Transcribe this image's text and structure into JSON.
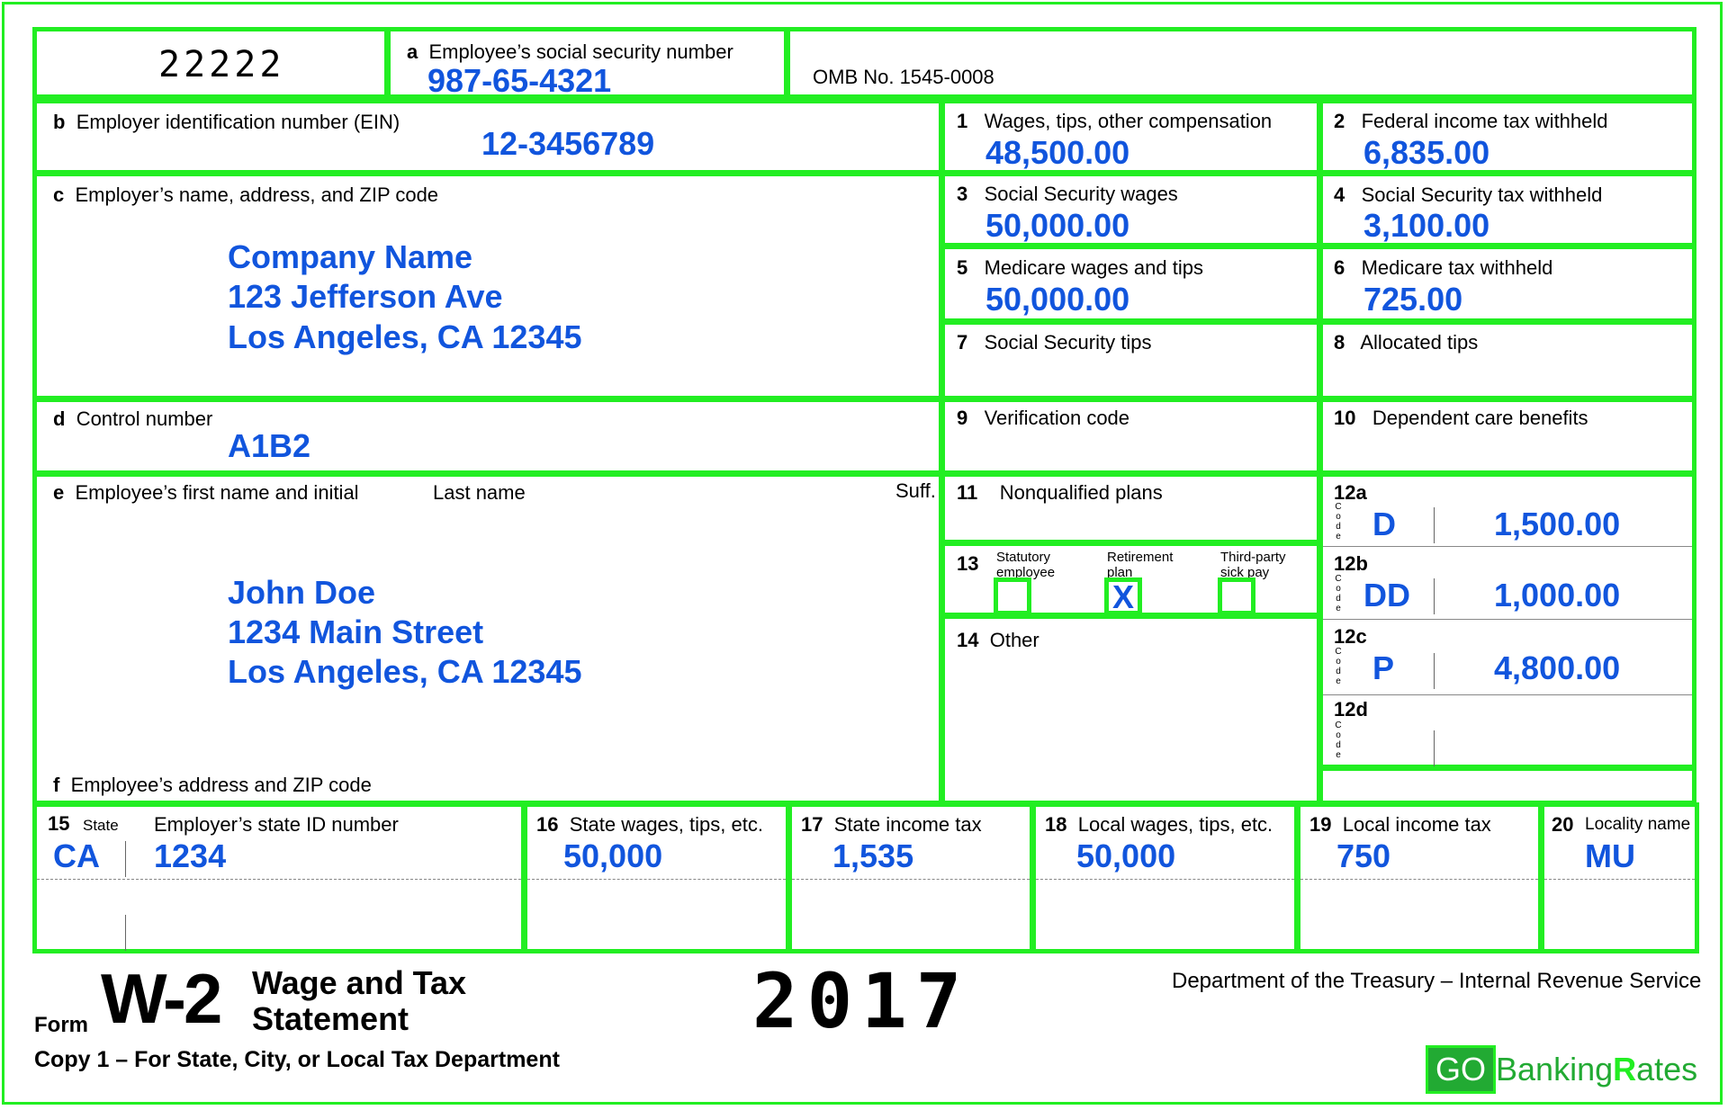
{
  "form_code": "22222",
  "box_a": {
    "letter": "a",
    "label": "Employee’s social security number",
    "value": "987-65-4321"
  },
  "omb": "OMB No.  1545-0008",
  "box_b": {
    "letter": "b",
    "label": "Employer identification number (EIN)",
    "value": "12-3456789"
  },
  "box_c": {
    "letter": "c",
    "label": "Employer’s name, address, and ZIP code",
    "line1": "Company Name",
    "line2": "123 Jefferson Ave",
    "line3": "Los Angeles, CA 12345"
  },
  "box_d": {
    "letter": "d",
    "label": "Control number",
    "value": "A1B2"
  },
  "box_e": {
    "letter": "e",
    "label": "Employee’s first name and initial",
    "last": "Last name",
    "suff": "Suff.",
    "line1": "John Doe",
    "line2": "1234 Main Street",
    "line3": "Los Angeles, CA 12345"
  },
  "box_f": {
    "letter": "f",
    "label": "Employee’s address and ZIP code"
  },
  "box1": {
    "num": "1",
    "label": "Wages, tips, other compensation",
    "value": "48,500.00"
  },
  "box2": {
    "num": "2",
    "label": "Federal income tax withheld",
    "value": "6,835.00"
  },
  "box3": {
    "num": "3",
    "label": "Social Security wages",
    "value": "50,000.00"
  },
  "box4": {
    "num": "4",
    "label": "Social Security tax withheld",
    "value": "3,100.00"
  },
  "box5": {
    "num": "5",
    "label": "Medicare wages and tips",
    "value": "50,000.00"
  },
  "box6": {
    "num": "6",
    "label": "Medicare tax withheld",
    "value": "725.00"
  },
  "box7": {
    "num": "7",
    "label": "Social Security tips"
  },
  "box8": {
    "num": "8",
    "label": "Allocated tips"
  },
  "box9": {
    "num": "9",
    "label": "Verification code"
  },
  "box10": {
    "num": "10",
    "label": "Dependent care benefits"
  },
  "box11": {
    "num": "11",
    "label": "Nonqualified plans"
  },
  "box13": {
    "num": "13",
    "statutory": "Statutory",
    "employee": "employee",
    "retirement": "Retirement",
    "plan": "plan",
    "third": "Third-party",
    "sick": "sick pay",
    "statutory_check": "",
    "retirement_check": "X",
    "third_check": ""
  },
  "box14": {
    "num": "14",
    "label": "Other"
  },
  "box12": {
    "code_label": [
      "C",
      "o",
      "d",
      "e"
    ],
    "rows": [
      {
        "id": "12a",
        "code": "D",
        "amount": "1,500.00"
      },
      {
        "id": "12b",
        "code": "DD",
        "amount": "1,000.00"
      },
      {
        "id": "12c",
        "code": "P",
        "amount": "4,800.00"
      },
      {
        "id": "12d",
        "code": "",
        "amount": ""
      }
    ]
  },
  "box15": {
    "num": "15",
    "state_label": "State",
    "id_label": "Employer’s state ID number",
    "state": "CA",
    "id": "1234"
  },
  "box16": {
    "num": "16",
    "label": "State wages, tips, etc.",
    "value": "50,000"
  },
  "box17": {
    "num": "17",
    "label": "State income tax",
    "value": "1,535"
  },
  "box18": {
    "num": "18",
    "label": "Local wages, tips, etc.",
    "value": "50,000"
  },
  "box19": {
    "num": "19",
    "label": "Local income tax",
    "value": "750"
  },
  "box20": {
    "num": "20",
    "label": "Locality name",
    "value": "MU"
  },
  "footer": {
    "form_word": "Form",
    "form_name": "W-2",
    "title1": "Wage and Tax",
    "title2": "Statement",
    "year": "2017",
    "department": "Department of the Treasury – Internal Revenue Service",
    "copy": "Copy 1 – For State, City, or Local Tax Department",
    "logo_go": "GO",
    "logo_banking": "Banking",
    "logo_r": "R",
    "logo_ates": "ates"
  },
  "colors": {
    "border": "#22ee22",
    "value": "#1155dd"
  }
}
